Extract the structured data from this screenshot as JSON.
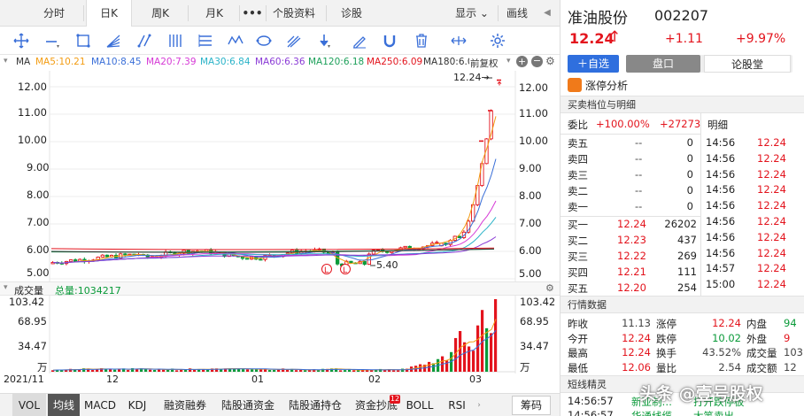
{
  "tabs": [
    "分时",
    "日K",
    "周K",
    "月K",
    "•••",
    "个股资料",
    "诊股"
  ],
  "active_tab": "日K",
  "tab_right": [
    "显示 ⌄",
    "画线"
  ],
  "ma_label": "MA",
  "ma_items": [
    {
      "text": "MA5:10.21",
      "color": "#f39c12"
    },
    {
      "text": "MA10:8.45",
      "color": "#3a6fd8"
    },
    {
      "text": "MA20:7.39",
      "color": "#d63ad6"
    },
    {
      "text": "MA30:6.84",
      "color": "#2ab3c8"
    },
    {
      "text": "MA60:6.36",
      "color": "#8a3ad6"
    },
    {
      "text": "MA120:6.18",
      "color": "#1da05a"
    },
    {
      "text": "MA250:6.09",
      "color": "#e3141d"
    },
    {
      "text": "MA180:6.09",
      "color": "#333333"
    }
  ],
  "restore_label": "前复权",
  "price_axis": [
    "12.00",
    "11.00",
    "10.00",
    "9.00",
    "8.00",
    "7.00",
    "6.00",
    "5.00"
  ],
  "price_axis_right": [
    "12.00",
    "11.00",
    "10.00",
    "9.00",
    "8.00",
    "7.00",
    "6.00",
    "5.00"
  ],
  "high_marker": "12.24→",
  "low_marker": "5.40",
  "vol_header": {
    "label": "成交量",
    "total": "总量:1034217"
  },
  "vol_axis": [
    "103.42",
    "68.95",
    "34.47",
    "万"
  ],
  "vol_axis_right": [
    "103.42",
    "68.95",
    "34.47",
    "万"
  ],
  "dates": [
    "2021/11",
    "12",
    "01",
    "02",
    "03"
  ],
  "bottom_tabs": [
    "VOL",
    "均线",
    "MACD",
    "KDJ",
    "融资融券",
    "陆股通资金",
    "陆股通持仓",
    "资金抄底",
    "BOLL",
    "RSI"
  ],
  "bottom_badge": "12",
  "bottom_right": "筹码",
  "stock": {
    "name": "准油股份",
    "code": "002207",
    "price": "12.24",
    "arrow": "↑",
    "change": "+1.11",
    "pct": "+9.97%"
  },
  "actions": {
    "add": "＋自选",
    "tab1": "盘口",
    "tab2": "论股堂"
  },
  "limit_label": "涨停分析",
  "orderbook_title": "买卖档位与明细",
  "ratio": {
    "label": "委比",
    "pct": "+100.00%",
    "diff": "+27273"
  },
  "detail_label": "明细",
  "asks": [
    {
      "label": "卖五",
      "price": "--",
      "vol": "0"
    },
    {
      "label": "卖四",
      "price": "--",
      "vol": "0"
    },
    {
      "label": "卖三",
      "price": "--",
      "vol": "0"
    },
    {
      "label": "卖二",
      "price": "--",
      "vol": "0"
    },
    {
      "label": "卖一",
      "price": "--",
      "vol": "0"
    }
  ],
  "bids": [
    {
      "label": "买一",
      "price": "12.24",
      "vol": "26202"
    },
    {
      "label": "买二",
      "price": "12.23",
      "vol": "437"
    },
    {
      "label": "买三",
      "price": "12.22",
      "vol": "269"
    },
    {
      "label": "买四",
      "price": "12.21",
      "vol": "111"
    },
    {
      "label": "买五",
      "price": "12.20",
      "vol": "254"
    }
  ],
  "ticks": [
    {
      "time": "14:56",
      "price": "12.24"
    },
    {
      "time": "14:56",
      "price": "12.24"
    },
    {
      "time": "14:56",
      "price": "12.24"
    },
    {
      "time": "14:56",
      "price": "12.24"
    },
    {
      "time": "14:56",
      "price": "12.24"
    },
    {
      "time": "14:56",
      "price": "12.24"
    },
    {
      "time": "14:56",
      "price": "12.24"
    },
    {
      "time": "14:56",
      "price": "12.24"
    },
    {
      "time": "14:57",
      "price": "12.24"
    },
    {
      "time": "15:00",
      "price": "12.24"
    }
  ],
  "quote_title": "行情数据",
  "quote": [
    {
      "l1": "昨收",
      "v1": "11.13",
      "c1": "gray",
      "l2": "涨停",
      "v2": "12.24",
      "c2": "red",
      "l3": "内盘",
      "v3": "94",
      "c3": "green"
    },
    {
      "l1": "今开",
      "v1": "12.24",
      "c1": "red",
      "l2": "跌停",
      "v2": "10.02",
      "c2": "green",
      "l3": "外盘",
      "v3": "9",
      "c3": "red"
    },
    {
      "l1": "最高",
      "v1": "12.24",
      "c1": "red",
      "l2": "换手",
      "v2": "43.52%",
      "c2": "gray",
      "l3": "成交量",
      "v3": "103",
      "c3": "gray"
    },
    {
      "l1": "最低",
      "v1": "12.06",
      "c1": "red",
      "l2": "量比",
      "v2": "2.54",
      "c2": "gray",
      "l3": "成交额",
      "v3": "12",
      "c3": "gray"
    }
  ],
  "short_title": "短线精灵",
  "short_rows": [
    {
      "time": "14:56:57",
      "name": "新亚制…",
      "event": "打开跌停板"
    },
    {
      "time": "14:56:57",
      "name": "华通线缆",
      "event": "大笔卖出"
    }
  ],
  "watermark": "头条 @壹号股权"
}
